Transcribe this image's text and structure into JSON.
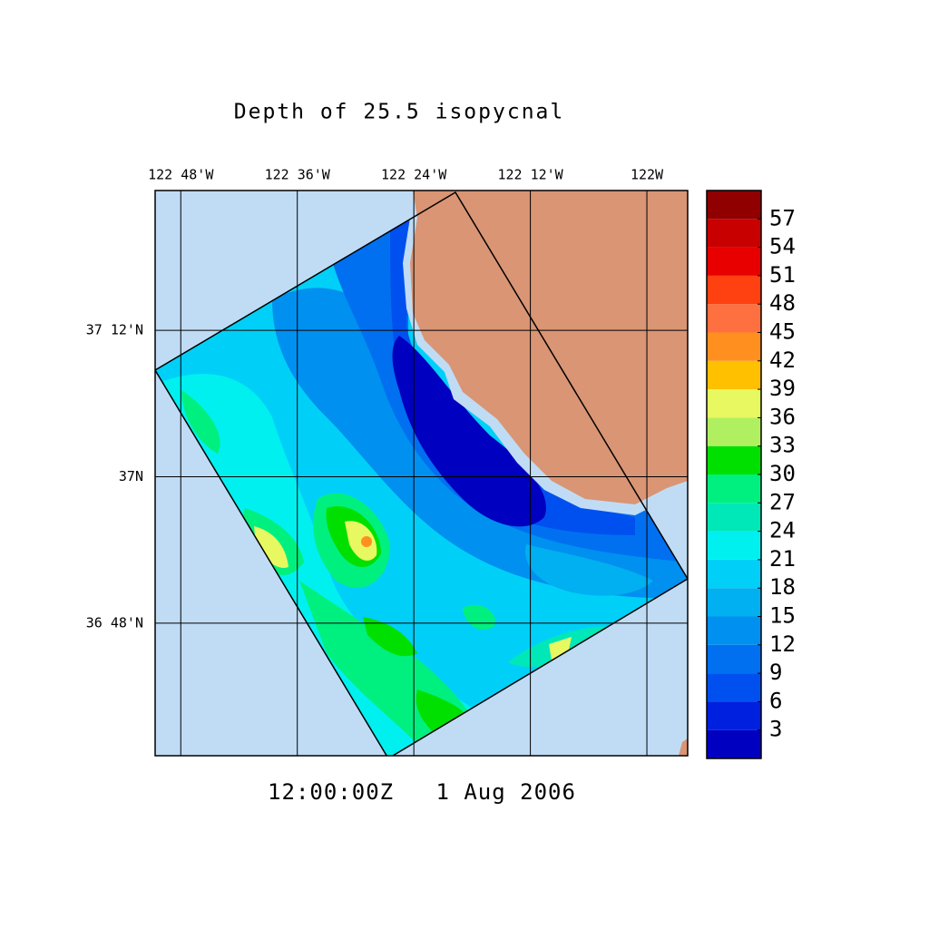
{
  "chart_data": {
    "type": "map",
    "title": "Depth of 25.5 isopycnal",
    "timestamp": "12:00:00Z   1 Aug 2006",
    "xlim": [
      -122.844,
      -121.93
    ],
    "ylim": [
      36.619,
      37.391
    ],
    "xticks": [
      {
        "value": -122.8,
        "label": "122 48'W"
      },
      {
        "value": -122.6,
        "label": "122 36'W"
      },
      {
        "value": -122.4,
        "label": "122 24'W"
      },
      {
        "value": -122.2,
        "label": "122 12'W"
      },
      {
        "value": -122.0,
        "label": "122W"
      }
    ],
    "yticks": [
      {
        "value": 37.2,
        "label": "37 12'N"
      },
      {
        "value": 37.0,
        "label": "37N"
      },
      {
        "value": 36.8,
        "label": "36 48'N"
      }
    ],
    "grid": true,
    "colorbar": {
      "range": [
        0,
        60
      ],
      "ticks": [
        3,
        6,
        9,
        12,
        15,
        18,
        21,
        24,
        27,
        30,
        33,
        36,
        39,
        42,
        45,
        48,
        51,
        54,
        57
      ],
      "colors": [
        "#0000c0",
        "#0020e0",
        "#0050f0",
        "#0070f0",
        "#0090f0",
        "#00b0f0",
        "#00d0f8",
        "#00f0f0",
        "#00e8b8",
        "#00f080",
        "#00e000",
        "#b0f060",
        "#e8f860",
        "#ffc000",
        "#ff9020",
        "#ff7040",
        "#ff4010",
        "#e80000",
        "#c80000",
        "#900000"
      ]
    }
  }
}
